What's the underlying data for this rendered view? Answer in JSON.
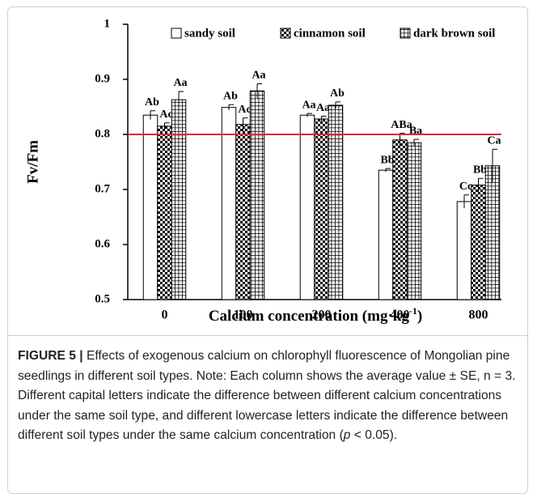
{
  "chart_data": {
    "type": "bar",
    "ylabel": "Fv/Fm",
    "xlabel": [
      "Calcium concentration (mg·kg",
      "-1",
      ")"
    ],
    "categories": [
      "0",
      "100",
      "200",
      "400",
      "800"
    ],
    "series": [
      {
        "name": "sandy soil",
        "pattern": "none",
        "values": [
          0.835,
          0.849,
          0.835,
          0.735,
          0.678
        ],
        "errors": [
          0.008,
          0.005,
          0.003,
          0.003,
          0.012
        ],
        "labels": [
          "Ab",
          "Ab",
          "Aa",
          "Bb",
          "Cc"
        ]
      },
      {
        "name": "cinnamon soil",
        "pattern": "checker",
        "values": [
          0.815,
          0.818,
          0.828,
          0.79,
          0.708
        ],
        "errors": [
          0.006,
          0.012,
          0.005,
          0.012,
          0.012
        ],
        "labels": [
          "Ac",
          "Ac",
          "Aa",
          "ABa",
          "Bb"
        ]
      },
      {
        "name": "dark brown soil",
        "pattern": "grid",
        "values": [
          0.863,
          0.879,
          0.853,
          0.785,
          0.743
        ],
        "errors": [
          0.015,
          0.013,
          0.006,
          0.006,
          0.03
        ],
        "labels": [
          "Aa",
          "Aa",
          "Ab",
          "Ba",
          "Ca"
        ]
      }
    ],
    "reference_line": {
      "value": 0.8,
      "color": "#e8262a"
    },
    "ylim": [
      0.5,
      1
    ],
    "yticks": [
      0.5,
      0.6,
      0.7,
      0.8,
      0.9,
      1
    ],
    "legend": "top"
  },
  "caption": {
    "label": "FIGURE 5 |",
    "text": [
      " Effects of exogenous calcium on chlorophyll fluorescence of Mongolian pine seedlings in different soil types. Note: Each column shows the average value ± SE, n = 3. Different capital letters indicate the difference between different calcium concentrations under the same soil type, and different lowercase letters indicate the difference between different soil types under the same calcium concentration (",
      "p",
      " < 0.05)."
    ]
  }
}
